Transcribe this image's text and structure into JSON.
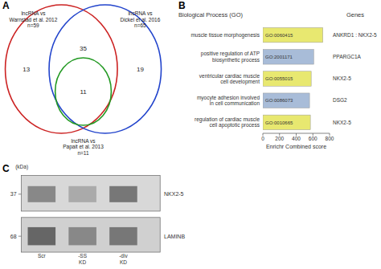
{
  "chart_data": [
    {
      "type": "venn",
      "title": "A",
      "series": [
        {
          "name": "lncRNA vs\nWarnstad et al. 2012\nn=59",
          "color": "#cc2222"
        },
        {
          "name": "lncRNA vs\nDickel et al. 2016\nn=65",
          "color": "#2244cc"
        },
        {
          "name": "lncRNA vs\nPapait et al. 2013\nn=11",
          "color": "#229922"
        }
      ],
      "regions": [
        {
          "sets": [
            0
          ],
          "value": 13
        },
        {
          "sets": [
            0,
            1
          ],
          "value": 35
        },
        {
          "sets": [
            1
          ],
          "value": 19
        },
        {
          "sets": [
            0,
            1,
            2
          ],
          "value": 11
        }
      ]
    },
    {
      "type": "bar",
      "title": "B",
      "orientation": "horizontal",
      "categories_title": "Biological Process (GO)",
      "genes_title": "Genes",
      "categories": [
        "muscle tissue morphogenesis",
        "positive regulation of ATP\nbiosynthetic process",
        "ventricular cardiac muscle\ncell development",
        "myocyte adhesion involved\nin cell communication",
        "regulation of cardiac muscle\ncell apoptotic process"
      ],
      "go_ids": [
        "GO:0060415",
        "GO:2001171",
        "GO:0055015",
        "GO:0086073",
        "GO:0010665"
      ],
      "genes": [
        "ANKRD1 : NKX2-5",
        "PPARGC1A",
        "NKX2-5",
        "DSG2",
        "NKX2-5"
      ],
      "values": [
        720,
        610,
        580,
        560,
        570
      ],
      "colors": [
        "#e8e870",
        "#a8bcd8",
        "#e8e870",
        "#a8bcd8",
        "#e8e870"
      ],
      "xlabel": "Enrichr Combined score",
      "xlim": [
        0,
        800
      ],
      "xticks": [
        0,
        200,
        400,
        600,
        800
      ],
      "grid": false
    },
    {
      "type": "western_blot",
      "title": "C",
      "unit_label": "(kDa)",
      "categories": [
        "Scr",
        "-SS\nKD",
        "-div\nKD"
      ],
      "series": [
        {
          "name": "NKX2-5",
          "kda": 37,
          "colors": [
            "#888888",
            "#aaaaaa",
            "#777777"
          ]
        },
        {
          "name": "LAMINB",
          "kda": 68,
          "colors": [
            "#666666",
            "#888888",
            "#777777"
          ]
        }
      ]
    }
  ]
}
